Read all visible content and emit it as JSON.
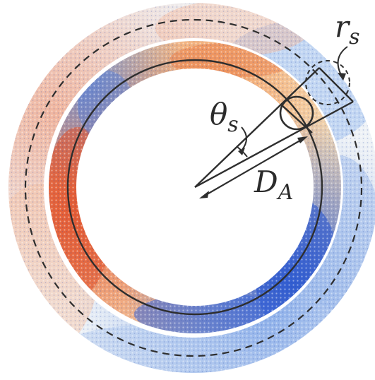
{
  "diagram": {
    "labels": {
      "theta": "θ",
      "theta_sub": "s",
      "distance": "D",
      "distance_sub": "A",
      "radius": "r",
      "radius_sub": "s"
    },
    "colors": {
      "warm": "#e8603a",
      "cool": "#3d6fd9",
      "pale": "#f3efe6",
      "line": "#2e2e2e"
    }
  }
}
